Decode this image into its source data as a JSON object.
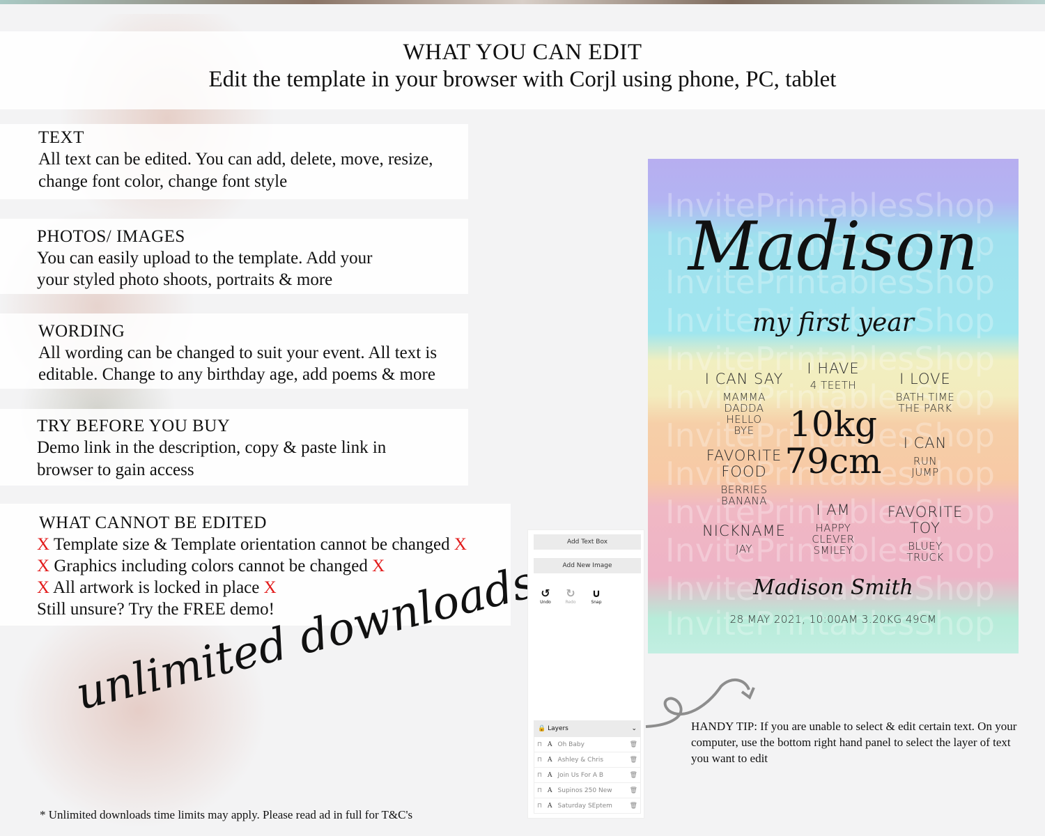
{
  "header": {
    "title": "WHAT YOU CAN EDIT",
    "subtitle": "Edit the template in your browser with Corjl using phone, PC, tablet"
  },
  "sections": [
    {
      "title": "TEXT",
      "body": "All text can be edited. You can add, delete, move, resize, change font color, change font style"
    },
    {
      "title": "PHOTOS/ IMAGES",
      "body": "You can easily upload to the template. Add your your styled photo shoots, portraits & more"
    },
    {
      "title": "WORDING",
      "body": "All wording can be changed to suit your event. All text is editable. Change to any birthday age, add poems & more"
    },
    {
      "title": "TRY BEFORE YOU BUY",
      "body": "Demo link in the description, copy & paste link in browser to gain access"
    }
  ],
  "cannot": {
    "title": "WHAT CANNOT BE EDITED",
    "mark": "X",
    "items": [
      "Template size & Template orientation cannot be changed",
      "Graphics including colors cannot be changed",
      "All artwork is locked in place"
    ],
    "closing": "Still unsure? Try the FREE demo!"
  },
  "unlimited": "unlimited downloads",
  "asterisk": "*",
  "footnote": "* Unlimited downloads time limits may apply. Please read ad in full for T&C's",
  "tip": "HANDY TIP: If you are unable to select & edit certain text. On your computer, use the bottom right hand panel to select the layer of text you want to edit",
  "editor": {
    "add_text": "Add Text Box",
    "add_image": "Add New Image",
    "undo": "Undo",
    "redo": "Redo",
    "snap": "Snap",
    "layers_title": "Layers",
    "layers": [
      "Oh Baby",
      "Ashley & Chris",
      "Join Us For A B",
      "Supinos 250 New",
      "Saturday SEptem"
    ]
  },
  "poster": {
    "watermark": "InvitePrintablesShop",
    "name": "Madison",
    "subtitle": "my first year",
    "blocks": [
      {
        "h": "I CAN SAY",
        "s": "MAMMA\nDADDA\nHELLO\nBYE"
      },
      {
        "h": "I HAVE",
        "s": "4 TEETH"
      },
      {
        "h": "I LOVE",
        "s": "BATH TIME\nTHE PARK"
      },
      {
        "h": "FAVORITE\nFOOD",
        "s": "BERRIES\nBANANA"
      },
      {
        "h": "I CAN",
        "s": "RUN\nJUMP"
      },
      {
        "h": "NICKNAME",
        "s": "JAY"
      },
      {
        "h": "I AM",
        "s": "HAPPY\nCLEVER\nSMILEY"
      },
      {
        "h": "FAVORITE\nTOY",
        "s": "BLUEY\nTRUCK"
      }
    ],
    "weight": "10kg",
    "height": "79cm",
    "signature": "Madison Smith",
    "footer": "28 MAY 2021, 10:00AM 3.20KG 49CM",
    "colors": [
      "#b7aef0",
      "#a0e6ef",
      "#f1efc0",
      "#f7c9a5",
      "#eeb3c6",
      "#c2eee2"
    ]
  }
}
